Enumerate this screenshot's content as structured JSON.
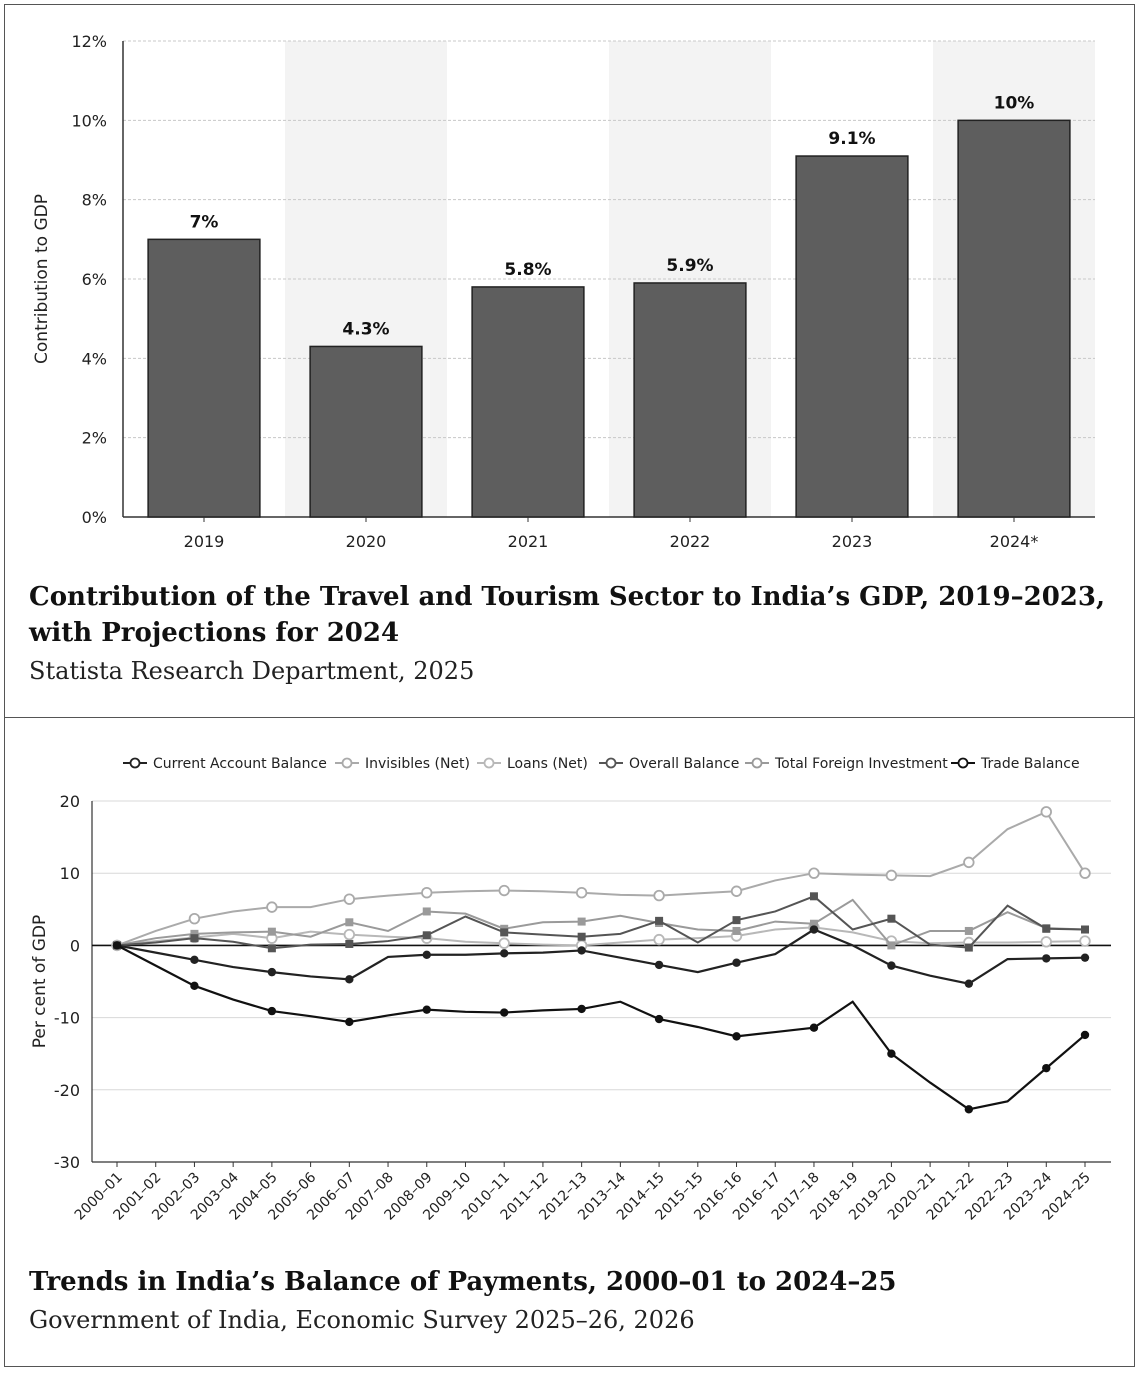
{
  "chart_data": [
    {
      "type": "bar",
      "title": "Contribution of the Travel and Tourism Sector to India’s GDP, 2019–2023, with Projections for 2024",
      "source": "Statista Research Department, 2025",
      "ylabel": "Contribution to GDP",
      "categories": [
        "2019",
        "2020",
        "2021",
        "2022",
        "2023",
        "2024*"
      ],
      "values": [
        7,
        4.3,
        5.8,
        5.9,
        9.1,
        10
      ],
      "data_labels": [
        "7%",
        "4.3%",
        "5.8%",
        "5.9%",
        "9.1%",
        "10%"
      ],
      "yticks": [
        "0%",
        "2%",
        "4%",
        "6%",
        "8%",
        "10%",
        "12%"
      ],
      "ylim": [
        0,
        12
      ],
      "grid": true,
      "bar_color": "#5e5e5e"
    },
    {
      "type": "line",
      "title": "Trends in India’s Balance of Payments, 2000–01 to 2024–25",
      "source": "Government of India, Economic Survey 2025–26, 2026",
      "ylabel": "Per cent of GDP",
      "x": [
        "2000–01",
        "2001–02",
        "2002–03",
        "2003–04",
        "2004–05",
        "2005–06",
        "2006–07",
        "2007–08",
        "2008–09",
        "2009–10",
        "2010–11",
        "2011–12",
        "2012–13",
        "2013–14",
        "2014–15",
        "2015–15",
        "2016–16",
        "2016–17",
        "2017–18",
        "2018–19",
        "2019–20",
        "2020–21",
        "2021–22",
        "2022–23",
        "2023–24",
        "2024–25"
      ],
      "yticks": [
        "-30",
        "-20",
        "-10",
        "0",
        "10",
        "20"
      ],
      "ylim": [
        -30,
        20
      ],
      "legend_position": "top",
      "series": [
        {
          "name": "Current Account Balance",
          "color": "#222222",
          "values": [
            0,
            -1,
            -2,
            -3,
            -3.7,
            -4.3,
            -4.7,
            -1.6,
            -1.3,
            -1.3,
            -1.1,
            -1.0,
            -0.7,
            -1.7,
            -2.7,
            -3.7,
            -2.4,
            -1.2,
            2.2,
            0,
            -2.8,
            -4.2,
            -5.3,
            -1.9,
            -1.8,
            -1.7
          ]
        },
        {
          "name": "Invisibles (Net)",
          "color": "#aaaaaa",
          "values": [
            0,
            2,
            3.7,
            4.7,
            5.3,
            5.3,
            6.4,
            6.9,
            7.3,
            7.5,
            7.6,
            7.5,
            7.3,
            7.0,
            6.9,
            7.2,
            7.5,
            9.0,
            10.0,
            9.8,
            9.7,
            9.6,
            11.5,
            16.1,
            18.5,
            10.0
          ]
        },
        {
          "name": "Loans (Net)",
          "color": "#b8b8b8",
          "values": [
            0,
            0.6,
            1.1,
            1.6,
            1.0,
            1.9,
            1.5,
            1.2,
            1.0,
            0.5,
            0.3,
            0.1,
            0,
            0.4,
            0.8,
            1.0,
            1.3,
            2.2,
            2.5,
            1.8,
            0.6,
            0.3,
            0.4,
            0.4,
            0.5,
            0.6
          ]
        },
        {
          "name": "Overall Balance",
          "color": "#555555",
          "values": [
            0,
            0.4,
            1.0,
            0.5,
            -0.4,
            0.1,
            0.2,
            0.6,
            1.4,
            4.0,
            1.8,
            1.5,
            1.2,
            1.6,
            3.4,
            0.4,
            3.5,
            4.7,
            6.8,
            2.2,
            3.7,
            0.1,
            -0.3,
            5.5,
            2.3,
            2.2
          ]
        },
        {
          "name": "Total Foreign Investment",
          "color": "#9a9a9a",
          "values": [
            0,
            1.0,
            1.6,
            1.8,
            1.9,
            1.2,
            3.2,
            2.0,
            4.7,
            4.4,
            2.3,
            3.2,
            3.3,
            4.1,
            3.1,
            2.2,
            2.0,
            3.3,
            3.0,
            6.3,
            0,
            2.0,
            2.0,
            4.6,
            2.4,
            2.2
          ]
        },
        {
          "name": "Trade Balance",
          "color": "#111111",
          "values": [
            0,
            -2.8,
            -5.6,
            -7.5,
            -9.1,
            -9.8,
            -10.6,
            -9.7,
            -8.9,
            -9.2,
            -9.3,
            -9.0,
            -8.8,
            -7.8,
            -10.2,
            -11.3,
            -12.6,
            -12.0,
            -11.4,
            -7.8,
            -15.0,
            -19.0,
            -22.7,
            -21.6,
            -17.0,
            -12.4
          ]
        }
      ],
      "highlighted_markers": {
        "Current Account Balance": [
          0,
          2,
          4,
          6,
          8,
          10,
          12,
          14,
          16,
          18,
          20,
          22,
          24,
          25
        ],
        "Trade Balance": [
          0,
          2,
          4,
          6,
          8,
          10,
          12,
          14,
          16,
          18,
          20,
          22,
          24,
          25
        ]
      }
    }
  ]
}
